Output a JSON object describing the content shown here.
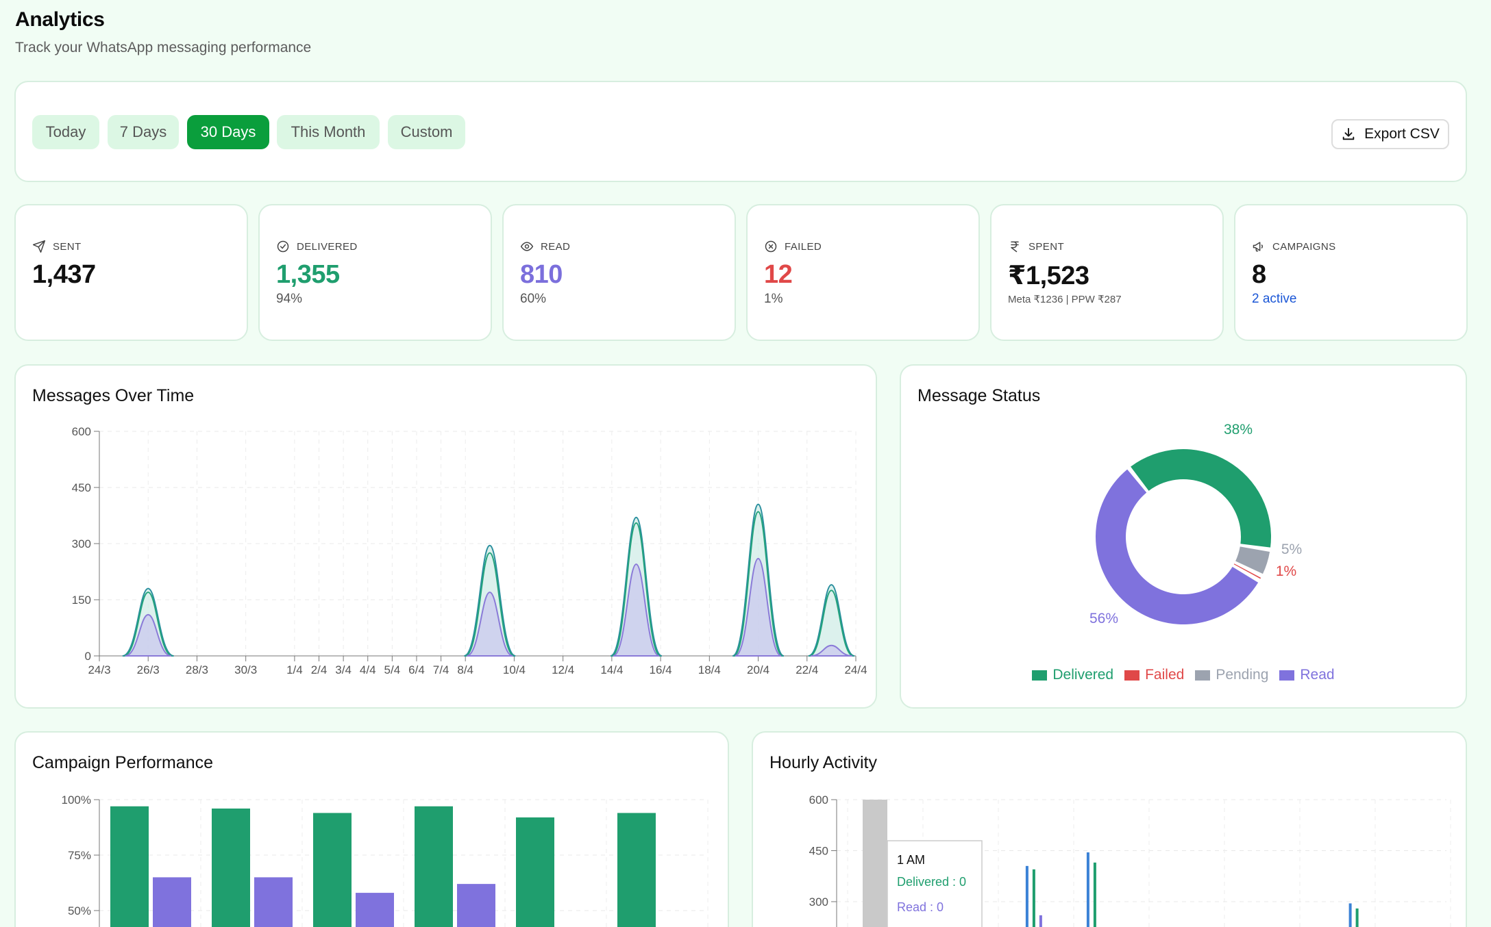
{
  "header": {
    "title": "Analytics",
    "subtitle": "Track your WhatsApp messaging performance"
  },
  "filters": {
    "ranges": [
      "Today",
      "7 Days",
      "30 Days",
      "This Month",
      "Custom"
    ],
    "active": "30 Days",
    "export_label": "Export CSV"
  },
  "stats": {
    "sent": {
      "label": "SENT",
      "value": "1,437",
      "icon": "send-icon"
    },
    "delivered": {
      "label": "DELIVERED",
      "value": "1,355",
      "sub": "94%",
      "icon": "check-circle-icon",
      "color": "#1f9e6e"
    },
    "read": {
      "label": "READ",
      "value": "810",
      "sub": "60%",
      "icon": "eye-icon",
      "color": "#7b6fdc"
    },
    "failed": {
      "label": "FAILED",
      "value": "12",
      "sub": "1%",
      "icon": "x-circle-icon",
      "color": "#e04848"
    },
    "spent": {
      "label": "SPENT",
      "value": "₹1,523",
      "sub": "Meta ₹1236 | PPW ₹287",
      "icon": "rupee-icon"
    },
    "campaigns": {
      "label": "CAMPAIGNS",
      "value": "8",
      "sub": "2 active",
      "icon": "megaphone-icon"
    }
  },
  "panels": {
    "messages_over_time": "Messages Over Time",
    "message_status": "Message Status",
    "campaign_performance": "Campaign Performance",
    "hourly_activity": "Hourly Activity"
  },
  "chart_data": [
    {
      "id": "messages_over_time",
      "type": "area",
      "x_ticks": [
        "24/3",
        "26/3",
        "28/3",
        "30/3",
        "1/4",
        "2/4",
        "3/4",
        "4/4",
        "5/4",
        "6/4",
        "7/4",
        "8/4",
        "10/4",
        "12/4",
        "14/4",
        "16/4",
        "18/4",
        "20/4",
        "22/4",
        "24/4"
      ],
      "y_ticks": [
        "0",
        "150",
        "300",
        "450",
        "600"
      ],
      "ylim": [
        0,
        600
      ],
      "peaks": [
        {
          "at": "26/3",
          "sent": 180,
          "delivered": 170,
          "read": 110
        },
        {
          "at": "9/4",
          "sent": 295,
          "delivered": 275,
          "read": 170
        },
        {
          "at": "15/4",
          "sent": 370,
          "delivered": 355,
          "read": 245
        },
        {
          "at": "20/4",
          "sent": 405,
          "delivered": 385,
          "read": 260
        },
        {
          "at": "23/4",
          "sent": 190,
          "delivered": 175,
          "read": 28
        }
      ],
      "colors": {
        "sent": "#2a8f9e",
        "delivered": "#24a37c",
        "read": "#8a7ad8"
      },
      "grid": true
    },
    {
      "id": "message_status",
      "type": "pie",
      "slices": [
        {
          "label": "Delivered",
          "value": 38,
          "display": "38%",
          "color": "#1f9e6e"
        },
        {
          "label": "Pending",
          "value": 5,
          "display": "5%",
          "color": "#9ca3af"
        },
        {
          "label": "Failed",
          "value": 1,
          "display": "1%",
          "color": "#e04848"
        },
        {
          "label": "Read",
          "value": 56,
          "display": "56%",
          "color": "#7f72dd"
        }
      ],
      "legend": [
        "Delivered",
        "Failed",
        "Pending",
        "Read"
      ],
      "legend_placement": "bottom"
    },
    {
      "id": "campaign_performance",
      "type": "bar",
      "y_ticks": [
        "50%",
        "75%",
        "100%"
      ],
      "ylim": [
        50,
        100
      ],
      "series": [
        {
          "values": [
            97,
            96,
            94,
            97,
            92,
            94
          ],
          "color": "#1f9e6e"
        },
        {
          "values": [
            65,
            65,
            58,
            62,
            null,
            null
          ],
          "color": "#7f72dd"
        }
      ],
      "grid": true
    },
    {
      "id": "hourly_activity",
      "type": "bar",
      "y_ticks": [
        "300",
        "450",
        "600"
      ],
      "ylim": [
        0,
        600
      ],
      "highlight_bar": {
        "value": 600,
        "color": "#c9c9c9"
      },
      "spikes": [
        {
          "pos": 0.31,
          "blue": 405,
          "green": 395,
          "purple": 260
        },
        {
          "pos": 0.41,
          "blue": 445,
          "green": 415,
          "purple": null
        },
        {
          "pos": 0.84,
          "blue": 295,
          "green": 280,
          "purple": null
        }
      ],
      "tooltip": {
        "title": "1 AM",
        "delivered": "Delivered : 0",
        "read": "Read : 0"
      }
    }
  ]
}
